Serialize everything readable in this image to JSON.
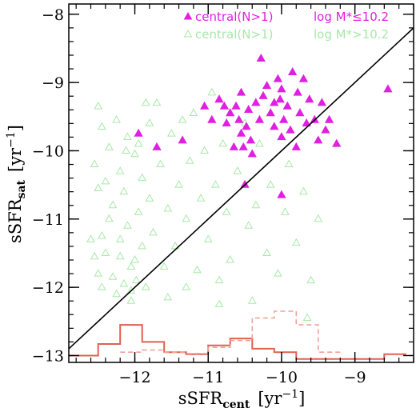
{
  "chart_data": {
    "type": "scatter",
    "xlabel_main": "sSFR",
    "xlabel_sub": "cent",
    "xlabel_unit": "[yr",
    "xlabel_exp": "−1",
    "xlabel_close": "]",
    "ylabel_main": "sSFR",
    "ylabel_sub": "sat",
    "ylabel_unit": "[yr",
    "ylabel_exp": "−1",
    "ylabel_close": "]",
    "xlim": [
      -12.9,
      -8.2
    ],
    "ylim": [
      -13.1,
      -7.85
    ],
    "xticks": [
      {
        "value": -12,
        "label": "−12"
      },
      {
        "value": -11,
        "label": "−11"
      },
      {
        "value": -10,
        "label": "−10"
      },
      {
        "value": -9,
        "label": "−9"
      }
    ],
    "yticks": [
      {
        "value": -13,
        "label": "−13"
      },
      {
        "value": -12,
        "label": "−12"
      },
      {
        "value": -11,
        "label": "−11"
      },
      {
        "value": -10,
        "label": "−10"
      },
      {
        "value": -9,
        "label": "−9"
      },
      {
        "value": -8,
        "label": "−8"
      }
    ],
    "colors": {
      "low_mass": "#e020e0",
      "high_mass": "#a8e8a8",
      "hist_solid": "#e06050",
      "hist_dashed": "#f0a098",
      "line": "#000000"
    },
    "legend": {
      "placement": "top-right",
      "entries": [
        {
          "marker": "filled-triangle",
          "label": "central(N>1)",
          "mass_label": "log M*≤10.2"
        },
        {
          "marker": "open-triangle",
          "label": "central(N>1)",
          "mass_label": "log M*>10.2"
        }
      ]
    },
    "one_to_one_line": [
      [
        -12.9,
        -12.9
      ],
      [
        -8.2,
        -8.2
      ]
    ],
    "series": [
      {
        "marker": "filled-triangle",
        "points": [
          [
            -11.95,
            -9.75
          ],
          [
            -11.7,
            -9.95
          ],
          [
            -11.35,
            -9.85
          ],
          [
            -11.05,
            -9.35
          ],
          [
            -10.95,
            -9.55
          ],
          [
            -10.85,
            -9.25
          ],
          [
            -10.75,
            -9.6
          ],
          [
            -10.7,
            -9.45
          ],
          [
            -10.62,
            -9.35
          ],
          [
            -10.58,
            -9.55
          ],
          [
            -10.55,
            -9.75
          ],
          [
            -10.52,
            -9.95
          ],
          [
            -10.48,
            -9.65
          ],
          [
            -10.45,
            -9.4
          ],
          [
            -10.42,
            -9.85
          ],
          [
            -10.4,
            -10.05
          ],
          [
            -10.35,
            -9.3
          ],
          [
            -10.3,
            -9.55
          ],
          [
            -10.25,
            -9.2
          ],
          [
            -10.2,
            -9.05
          ],
          [
            -10.15,
            -9.45
          ],
          [
            -10.1,
            -9.65
          ],
          [
            -10.05,
            -8.95
          ],
          [
            -10.02,
            -9.25
          ],
          [
            -10.0,
            -9.8
          ],
          [
            -9.97,
            -9.55
          ],
          [
            -9.92,
            -9.35
          ],
          [
            -9.88,
            -9.7
          ],
          [
            -9.85,
            -8.85
          ],
          [
            -9.8,
            -9.95
          ],
          [
            -9.75,
            -9.45
          ],
          [
            -9.7,
            -8.95
          ],
          [
            -9.66,
            -9.6
          ],
          [
            -9.62,
            -9.25
          ],
          [
            -9.55,
            -9.55
          ],
          [
            -9.5,
            -9.85
          ],
          [
            -9.45,
            -9.3
          ],
          [
            -9.4,
            -9.7
          ],
          [
            -9.35,
            -9.55
          ],
          [
            -9.25,
            -9.9
          ],
          [
            -10.0,
            -9.1
          ],
          [
            -10.1,
            -9.3
          ],
          [
            -10.28,
            -8.65
          ],
          [
            -10.55,
            -9.15
          ],
          [
            -10.65,
            -9.95
          ],
          [
            -10.5,
            -10.5
          ],
          [
            -10.0,
            -10.65
          ],
          [
            -8.55,
            -9.1
          ],
          [
            -10.78,
            -9.35
          ],
          [
            -9.78,
            -9.15
          ]
        ]
      },
      {
        "marker": "open-triangle",
        "points": [
          [
            -12.5,
            -9.35
          ],
          [
            -12.45,
            -9.65
          ],
          [
            -12.55,
            -10.2
          ],
          [
            -12.5,
            -10.55
          ],
          [
            -12.6,
            -11.3
          ],
          [
            -12.55,
            -11.55
          ],
          [
            -12.5,
            -11.8
          ],
          [
            -12.45,
            -12.0
          ],
          [
            -12.4,
            -11.5
          ],
          [
            -12.35,
            -11.0
          ],
          [
            -12.3,
            -10.8
          ],
          [
            -12.3,
            -11.85
          ],
          [
            -12.25,
            -12.1
          ],
          [
            -12.2,
            -11.3
          ],
          [
            -12.2,
            -10.3
          ],
          [
            -12.15,
            -10.6
          ],
          [
            -12.1,
            -9.8
          ],
          [
            -12.1,
            -11.1
          ],
          [
            -12.05,
            -11.7
          ],
          [
            -12.05,
            -12.2
          ],
          [
            -12.0,
            -10.05
          ],
          [
            -12.0,
            -11.6
          ],
          [
            -11.95,
            -10.9
          ],
          [
            -11.95,
            -9.9
          ],
          [
            -11.9,
            -11.4
          ],
          [
            -11.9,
            -10.4
          ],
          [
            -11.85,
            -12.0
          ],
          [
            -11.8,
            -9.6
          ],
          [
            -11.8,
            -10.7
          ],
          [
            -11.75,
            -11.2
          ],
          [
            -11.7,
            -9.3
          ],
          [
            -11.65,
            -10.2
          ],
          [
            -11.6,
            -11.7
          ],
          [
            -11.55,
            -10.85
          ],
          [
            -11.5,
            -9.75
          ],
          [
            -11.45,
            -11.4
          ],
          [
            -11.4,
            -10.5
          ],
          [
            -11.35,
            -9.55
          ],
          [
            -11.3,
            -11.0
          ],
          [
            -11.25,
            -10.15
          ],
          [
            -11.2,
            -9.45
          ],
          [
            -11.15,
            -11.75
          ],
          [
            -11.1,
            -10.7
          ],
          [
            -11.05,
            -10.0
          ],
          [
            -11.0,
            -11.3
          ],
          [
            -10.95,
            -9.15
          ],
          [
            -10.9,
            -10.5
          ],
          [
            -10.85,
            -11.9
          ],
          [
            -10.8,
            -9.9
          ],
          [
            -10.75,
            -10.9
          ],
          [
            -10.7,
            -11.6
          ],
          [
            -10.6,
            -10.3
          ],
          [
            -10.5,
            -9.6
          ],
          [
            -10.45,
            -11.1
          ],
          [
            -10.35,
            -10.8
          ],
          [
            -10.3,
            -9.9
          ],
          [
            -10.2,
            -11.5
          ],
          [
            -10.15,
            -10.5
          ],
          [
            -10.05,
            -11.8
          ],
          [
            -9.95,
            -10.9
          ],
          [
            -9.9,
            -10.2
          ],
          [
            -9.8,
            -11.35
          ],
          [
            -9.7,
            -10.6
          ],
          [
            -9.6,
            -11.9
          ],
          [
            -9.5,
            -11.0
          ],
          [
            -12.05,
            -12.05
          ],
          [
            -11.98,
            -11.9
          ],
          [
            -12.15,
            -11.95
          ],
          [
            -12.12,
            -10.0
          ],
          [
            -11.85,
            -9.3
          ],
          [
            -10.85,
            -12.25
          ],
          [
            -10.4,
            -12.2
          ],
          [
            -9.65,
            -12.45
          ],
          [
            -11.3,
            -12.0
          ],
          [
            -11.55,
            -12.15
          ],
          [
            -12.35,
            -9.95
          ],
          [
            -12.25,
            -9.55
          ],
          [
            -12.4,
            -10.45
          ],
          [
            -12.2,
            -11.55
          ],
          [
            -12.45,
            -11.25
          ]
        ]
      }
    ],
    "histograms": [
      {
        "style": "solid",
        "edges": [
          -12.9,
          -12.5,
          -12.2,
          -11.9,
          -11.6,
          -11.3,
          -11.0,
          -10.7,
          -10.4,
          -10.1,
          -9.8,
          -9.5,
          -9.2,
          -8.9,
          -8.6,
          -8.3
        ],
        "values": [
          -13.0,
          -12.83,
          -12.55,
          -12.8,
          -12.95,
          -12.98,
          -12.85,
          -12.75,
          -12.9,
          -12.95,
          -13.05,
          -13.05,
          -13.05,
          -13.05,
          -12.98
        ]
      },
      {
        "style": "dashed",
        "edges": [
          -12.2,
          -11.9,
          -11.6,
          -11.3,
          -11.0,
          -10.7,
          -10.4,
          -10.1,
          -9.8,
          -9.5,
          -9.2
        ],
        "values": [
          -12.95,
          -12.92,
          -12.95,
          -12.97,
          -12.88,
          -12.78,
          -12.45,
          -12.35,
          -12.55,
          -12.95
        ]
      }
    ]
  }
}
